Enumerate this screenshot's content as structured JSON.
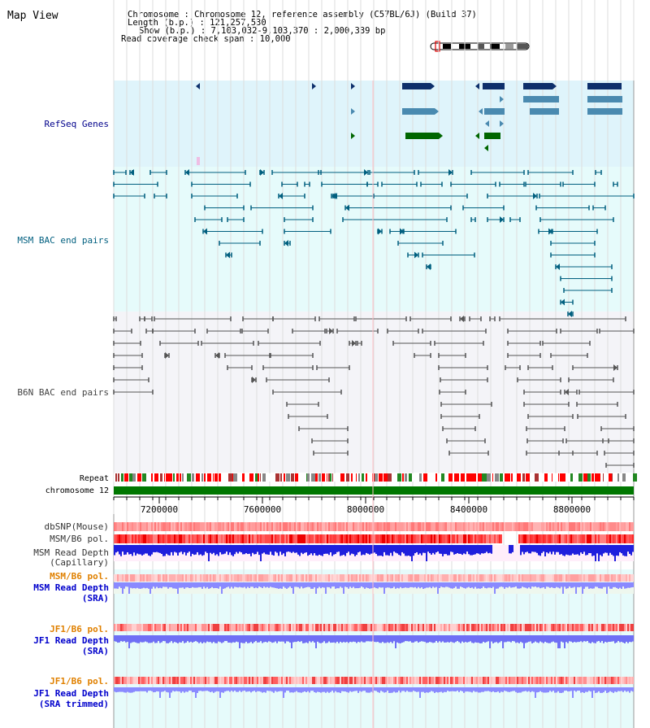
{
  "header": {
    "title": "Map View",
    "info_lines": [
      "Chromosome     : Chromosome 12, reference assembly (C57BL/6J) (Build 37)",
      "Length (b.p.) : 121,257,530",
      "Show (b.p.) : 7,103,032-9,103,370 : 2,000,339 bp",
      "Read coverage check span : 10,000"
    ]
  },
  "tracks": {
    "refseq": {
      "label": "RefSeq Genes",
      "color": "#00008b"
    },
    "msm_bac": {
      "label": "MSM BAC end pairs",
      "color": "#005f7f"
    },
    "b6n_bac": {
      "label": "B6N BAC end pairs",
      "color": "#444444"
    },
    "repeat": {
      "label": "Repeat"
    },
    "chromosome": {
      "label": "chromosome 12"
    },
    "dbsnp": {
      "label": "dbSNP(Mouse)"
    },
    "msm_b6_pol": {
      "label": "MSM/B6 pol."
    },
    "msm_depth_cap": {
      "label_1": "MSM Read Depth",
      "label_2": "(Capillary)"
    },
    "msm_b6_pol_sra": {
      "label": "MSM/B6 pol.",
      "color": "#e08000"
    },
    "msm_depth_sra": {
      "label_1": "MSM Read Depth",
      "label_2": "(SRA)",
      "color": "#0000cc"
    },
    "jf1_b6_pol": {
      "label": "JF1/B6 pol.",
      "color": "#e08000"
    },
    "jf1_depth_sra": {
      "label_1": "JF1 Read Depth",
      "label_2": "(SRA)",
      "color": "#0000cc"
    },
    "jf1_b6_pol_trim": {
      "label": "JF1/B6 pol.",
      "color": "#e08000"
    },
    "jf1_depth_trim": {
      "label_1": "JF1 Read Depth",
      "label_2": "(SRA trimmed)",
      "color": "#0000cc"
    }
  },
  "axis": {
    "range_bp": [
      7103032,
      9103370
    ],
    "ticks": [
      "7200000",
      "7600000",
      "8000000",
      "8400000",
      "8800000"
    ],
    "tick_values": [
      7200000,
      7600000,
      8000000,
      8400000,
      8800000
    ]
  }
}
